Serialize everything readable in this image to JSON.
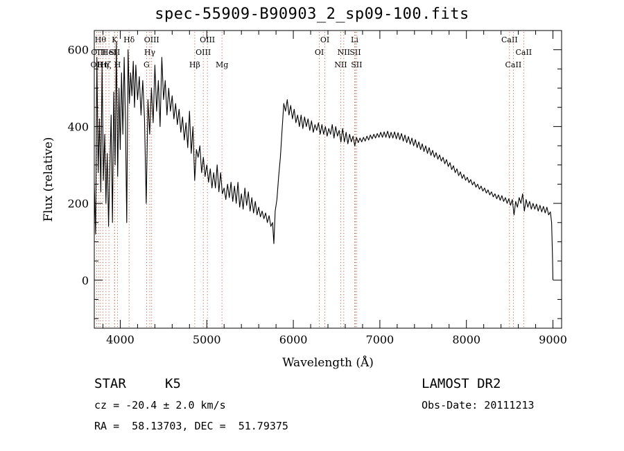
{
  "chart_data": {
    "type": "line",
    "title": "spec-55909-B90903_2_sp09-100.fits",
    "xlabel": "Wavelength (Å)",
    "ylabel": "Flux (relative)",
    "xlim": [
      3700,
      9100
    ],
    "ylim": [
      -125,
      650
    ],
    "xticks": [
      4000,
      5000,
      6000,
      7000,
      8000,
      9000
    ],
    "yticks": [
      0,
      200,
      400,
      600
    ],
    "grid": false,
    "series": [
      {
        "points": [
          [
            3700,
            250
          ],
          [
            3715,
            120
          ],
          [
            3730,
            580
          ],
          [
            3745,
            280
          ],
          [
            3760,
            420
          ],
          [
            3775,
            230
          ],
          [
            3790,
            560
          ],
          [
            3805,
            260
          ],
          [
            3820,
            380
          ],
          [
            3835,
            200
          ],
          [
            3850,
            330
          ],
          [
            3865,
            140
          ],
          [
            3880,
            300
          ],
          [
            3895,
            430
          ],
          [
            3910,
            150
          ],
          [
            3925,
            490
          ],
          [
            3940,
            300
          ],
          [
            3955,
            620
          ],
          [
            3970,
            270
          ],
          [
            3985,
            500
          ],
          [
            4000,
            340
          ],
          [
            4015,
            540
          ],
          [
            4030,
            380
          ],
          [
            4045,
            580
          ],
          [
            4060,
            420
          ],
          [
            4075,
            150
          ],
          [
            4090,
            600
          ],
          [
            4105,
            460
          ],
          [
            4120,
            540
          ],
          [
            4135,
            480
          ],
          [
            4150,
            570
          ],
          [
            4165,
            450
          ],
          [
            4180,
            560
          ],
          [
            4200,
            470
          ],
          [
            4220,
            530
          ],
          [
            4240,
            430
          ],
          [
            4260,
            520
          ],
          [
            4280,
            420
          ],
          [
            4300,
            200
          ],
          [
            4320,
            470
          ],
          [
            4340,
            380
          ],
          [
            4360,
            500
          ],
          [
            4380,
            410
          ],
          [
            4400,
            560
          ],
          [
            4420,
            440
          ],
          [
            4440,
            520
          ],
          [
            4460,
            400
          ],
          [
            4480,
            580
          ],
          [
            4500,
            470
          ],
          [
            4520,
            520
          ],
          [
            4540,
            430
          ],
          [
            4560,
            500
          ],
          [
            4580,
            440
          ],
          [
            4600,
            480
          ],
          [
            4620,
            420
          ],
          [
            4640,
            460
          ],
          [
            4660,
            405
          ],
          [
            4680,
            445
          ],
          [
            4700,
            385
          ],
          [
            4720,
            425
          ],
          [
            4740,
            365
          ],
          [
            4760,
            410
          ],
          [
            4780,
            345
          ],
          [
            4800,
            440
          ],
          [
            4820,
            330
          ],
          [
            4840,
            400
          ],
          [
            4860,
            260
          ],
          [
            4880,
            340
          ],
          [
            4900,
            320
          ],
          [
            4920,
            350
          ],
          [
            4940,
            280
          ],
          [
            4960,
            320
          ],
          [
            4980,
            270
          ],
          [
            5000,
            300
          ],
          [
            5020,
            255
          ],
          [
            5040,
            290
          ],
          [
            5060,
            240
          ],
          [
            5080,
            280
          ],
          [
            5100,
            240
          ],
          [
            5120,
            300
          ],
          [
            5140,
            230
          ],
          [
            5160,
            280
          ],
          [
            5180,
            225
          ],
          [
            5200,
            240
          ],
          [
            5220,
            210
          ],
          [
            5240,
            250
          ],
          [
            5260,
            215
          ],
          [
            5280,
            255
          ],
          [
            5300,
            205
          ],
          [
            5320,
            245
          ],
          [
            5340,
            200
          ],
          [
            5360,
            255
          ],
          [
            5380,
            190
          ],
          [
            5400,
            225
          ],
          [
            5420,
            185
          ],
          [
            5440,
            240
          ],
          [
            5460,
            195
          ],
          [
            5480,
            230
          ],
          [
            5500,
            180
          ],
          [
            5520,
            215
          ],
          [
            5540,
            175
          ],
          [
            5560,
            205
          ],
          [
            5580,
            170
          ],
          [
            5600,
            190
          ],
          [
            5620,
            165
          ],
          [
            5640,
            180
          ],
          [
            5660,
            160
          ],
          [
            5680,
            175
          ],
          [
            5700,
            150
          ],
          [
            5720,
            168
          ],
          [
            5740,
            140
          ],
          [
            5760,
            150
          ],
          [
            5775,
            95
          ],
          [
            5790,
            180
          ],
          [
            5810,
            210
          ],
          [
            5830,
            270
          ],
          [
            5850,
            320
          ],
          [
            5870,
            390
          ],
          [
            5890,
            460
          ],
          [
            5910,
            440
          ],
          [
            5930,
            470
          ],
          [
            5950,
            430
          ],
          [
            5970,
            455
          ],
          [
            5990,
            420
          ],
          [
            6010,
            445
          ],
          [
            6030,
            410
          ],
          [
            6050,
            430
          ],
          [
            6070,
            400
          ],
          [
            6090,
            430
          ],
          [
            6110,
            395
          ],
          [
            6130,
            425
          ],
          [
            6150,
            400
          ],
          [
            6170,
            420
          ],
          [
            6190,
            390
          ],
          [
            6210,
            415
          ],
          [
            6230,
            385
          ],
          [
            6250,
            405
          ],
          [
            6270,
            390
          ],
          [
            6290,
            410
          ],
          [
            6310,
            380
          ],
          [
            6330,
            405
          ],
          [
            6350,
            380
          ],
          [
            6370,
            400
          ],
          [
            6390,
            375
          ],
          [
            6410,
            395
          ],
          [
            6430,
            380
          ],
          [
            6450,
            405
          ],
          [
            6470,
            370
          ],
          [
            6490,
            400
          ],
          [
            6510,
            375
          ],
          [
            6530,
            390
          ],
          [
            6550,
            360
          ],
          [
            6570,
            395
          ],
          [
            6590,
            360
          ],
          [
            6610,
            385
          ],
          [
            6630,
            355
          ],
          [
            6650,
            380
          ],
          [
            6670,
            360
          ],
          [
            6690,
            375
          ],
          [
            6710,
            350
          ],
          [
            6730,
            372
          ],
          [
            6750,
            358
          ],
          [
            6770,
            370
          ],
          [
            6790,
            360
          ],
          [
            6810,
            372
          ],
          [
            6830,
            362
          ],
          [
            6850,
            375
          ],
          [
            6870,
            365
          ],
          [
            6890,
            378
          ],
          [
            6910,
            368
          ],
          [
            6930,
            380
          ],
          [
            6950,
            370
          ],
          [
            6970,
            382
          ],
          [
            6990,
            372
          ],
          [
            7010,
            385
          ],
          [
            7030,
            372
          ],
          [
            7050,
            386
          ],
          [
            7070,
            372
          ],
          [
            7090,
            388
          ],
          [
            7110,
            370
          ],
          [
            7130,
            385
          ],
          [
            7150,
            370
          ],
          [
            7170,
            386
          ],
          [
            7190,
            368
          ],
          [
            7210,
            384
          ],
          [
            7230,
            366
          ],
          [
            7250,
            382
          ],
          [
            7270,
            362
          ],
          [
            7290,
            378
          ],
          [
            7310,
            358
          ],
          [
            7330,
            374
          ],
          [
            7350,
            354
          ],
          [
            7370,
            370
          ],
          [
            7390,
            350
          ],
          [
            7410,
            366
          ],
          [
            7430,
            345
          ],
          [
            7450,
            360
          ],
          [
            7470,
            340
          ],
          [
            7490,
            355
          ],
          [
            7510,
            335
          ],
          [
            7530,
            350
          ],
          [
            7550,
            330
          ],
          [
            7570,
            345
          ],
          [
            7590,
            325
          ],
          [
            7610,
            338
          ],
          [
            7630,
            320
          ],
          [
            7650,
            332
          ],
          [
            7670,
            315
          ],
          [
            7690,
            326
          ],
          [
            7710,
            310
          ],
          [
            7730,
            320
          ],
          [
            7750,
            303
          ],
          [
            7770,
            314
          ],
          [
            7790,
            296
          ],
          [
            7810,
            306
          ],
          [
            7830,
            288
          ],
          [
            7850,
            298
          ],
          [
            7870,
            280
          ],
          [
            7890,
            290
          ],
          [
            7910,
            272
          ],
          [
            7930,
            282
          ],
          [
            7950,
            265
          ],
          [
            7970,
            275
          ],
          [
            7990,
            260
          ],
          [
            8010,
            268
          ],
          [
            8030,
            254
          ],
          [
            8050,
            262
          ],
          [
            8070,
            248
          ],
          [
            8090,
            256
          ],
          [
            8110,
            242
          ],
          [
            8130,
            250
          ],
          [
            8150,
            237
          ],
          [
            8170,
            245
          ],
          [
            8190,
            232
          ],
          [
            8210,
            240
          ],
          [
            8230,
            227
          ],
          [
            8250,
            235
          ],
          [
            8270,
            222
          ],
          [
            8290,
            230
          ],
          [
            8310,
            217
          ],
          [
            8330,
            225
          ],
          [
            8350,
            212
          ],
          [
            8370,
            222
          ],
          [
            8390,
            208
          ],
          [
            8410,
            220
          ],
          [
            8430,
            205
          ],
          [
            8450,
            215
          ],
          [
            8470,
            200
          ],
          [
            8490,
            212
          ],
          [
            8510,
            195
          ],
          [
            8530,
            210
          ],
          [
            8550,
            170
          ],
          [
            8570,
            205
          ],
          [
            8590,
            190
          ],
          [
            8610,
            215
          ],
          [
            8630,
            200
          ],
          [
            8650,
            225
          ],
          [
            8670,
            180
          ],
          [
            8690,
            210
          ],
          [
            8710,
            190
          ],
          [
            8730,
            205
          ],
          [
            8750,
            185
          ],
          [
            8770,
            200
          ],
          [
            8790,
            185
          ],
          [
            8810,
            198
          ],
          [
            8830,
            180
          ],
          [
            8850,
            195
          ],
          [
            8870,
            178
          ],
          [
            8890,
            192
          ],
          [
            8910,
            175
          ],
          [
            8930,
            190
          ],
          [
            8950,
            170
          ],
          [
            8970,
            178
          ],
          [
            8985,
            150
          ],
          [
            8995,
            60
          ],
          [
            9000,
            0
          ]
        ]
      }
    ],
    "lines": [
      {
        "x": 3727,
        "label": "OII",
        "row": 2
      },
      {
        "x": 3750,
        "label": "OIII",
        "row": 1
      },
      {
        "x": 3771,
        "label": "Hθ",
        "row": 0
      },
      {
        "x": 3798,
        "label": "Hη",
        "row": 2
      },
      {
        "x": 3835,
        "label": "Hζ",
        "row": 2
      },
      {
        "x": 3869,
        "label": "HeI",
        "row": 1
      },
      {
        "x": 3934,
        "label": "K",
        "row": 0
      },
      {
        "x": 3934,
        "label": "SII",
        "row": 1
      },
      {
        "x": 3969,
        "label": "H",
        "row": 2
      },
      {
        "x": 4102,
        "label": "Hδ",
        "row": 0
      },
      {
        "x": 4304,
        "label": "G",
        "row": 2
      },
      {
        "x": 4341,
        "label": "Hγ",
        "row": 1
      },
      {
        "x": 4363,
        "label": "OIII",
        "row": 0
      },
      {
        "x": 4861,
        "label": "Hβ",
        "row": 2
      },
      {
        "x": 4959,
        "label": "OIII",
        "row": 1
      },
      {
        "x": 5007,
        "label": "OIII",
        "row": 0
      },
      {
        "x": 5175,
        "label": "Mg",
        "row": 2
      },
      {
        "x": 6300,
        "label": "OI",
        "row": 1
      },
      {
        "x": 6364,
        "label": "OI",
        "row": 0
      },
      {
        "x": 6548,
        "label": "NII",
        "row": 2
      },
      {
        "x": 6583,
        "label": "NII",
        "row": 1
      },
      {
        "x": 6708,
        "label": "Li",
        "row": 0
      },
      {
        "x": 6716,
        "label": "SII",
        "row": 1
      },
      {
        "x": 6731,
        "label": "SII",
        "row": 2
      },
      {
        "x": 8498,
        "label": "CaII",
        "row": 0
      },
      {
        "x": 8542,
        "label": "CaII",
        "row": 2
      },
      {
        "x": 8662,
        "label": "CaII",
        "row": 1
      }
    ]
  },
  "info": {
    "class_label": "STAR",
    "subclass": "K5",
    "survey": "LAMOST DR2",
    "cz": "cz = -20.4 ± 2.0 km/s",
    "obs_date": "Obs-Date: 20111213",
    "coords": "RA =  58.13703, DEC =  51.79375"
  }
}
